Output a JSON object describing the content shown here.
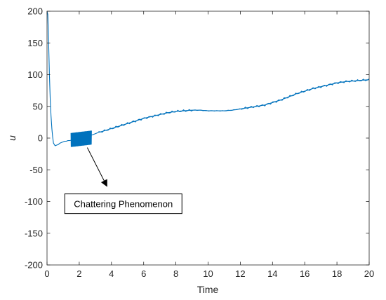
{
  "chart_data": {
    "type": "line",
    "title": "",
    "xlabel": "Time",
    "ylabel": "u",
    "xlim": [
      0,
      20
    ],
    "ylim": [
      -200,
      200
    ],
    "xticks": [
      0,
      2,
      4,
      6,
      8,
      10,
      12,
      14,
      16,
      18,
      20
    ],
    "yticks": [
      -200,
      -150,
      -100,
      -50,
      0,
      50,
      100,
      150,
      200
    ],
    "grid": false,
    "legend": "none",
    "line_color": "#0072BD",
    "series": [
      {
        "x": [
          0.0,
          0.05,
          0.1,
          0.15,
          0.2,
          0.25,
          0.3,
          0.35,
          0.4,
          0.5,
          0.6,
          0.7,
          0.8,
          0.9,
          1.0,
          1.1,
          1.2,
          1.3,
          1.4,
          2.8,
          3.0,
          3.2,
          3.5,
          4.0,
          4.5,
          5.0,
          5.5,
          6.0,
          6.5,
          7.0,
          7.5,
          8.0,
          8.5,
          9.0,
          9.5,
          10.0,
          10.5,
          11.0,
          11.5,
          12.0,
          12.5,
          13.0,
          13.5,
          14.0,
          14.5,
          15.0,
          15.5,
          16.0,
          16.5,
          17.0,
          17.5,
          18.0,
          18.5,
          19.0,
          19.5,
          20.0
        ],
        "y": [
          200,
          195,
          150,
          100,
          60,
          35,
          15,
          2,
          -8,
          -12,
          -11,
          -10,
          -8,
          -7,
          -6,
          -5,
          -5,
          -4,
          -4,
          5,
          7,
          9,
          11,
          15,
          19,
          23,
          27,
          31,
          34,
          37,
          40,
          42,
          43,
          44,
          44,
          43,
          43,
          43,
          44,
          46,
          48,
          50,
          52,
          56,
          60,
          65,
          70,
          74,
          78,
          81,
          84,
          87,
          89,
          90,
          91,
          92
        ]
      }
    ],
    "chattering": {
      "x_start": 1.5,
      "x_end": 2.75,
      "y_center": -3,
      "amplitude": 11
    },
    "annotation": {
      "text": "Chattering Phenomenon",
      "arrow_from": [
        2.5,
        -15
      ],
      "arrow_to": [
        3.7,
        -75
      ],
      "box_x": 1.1,
      "box_y": -88
    }
  }
}
